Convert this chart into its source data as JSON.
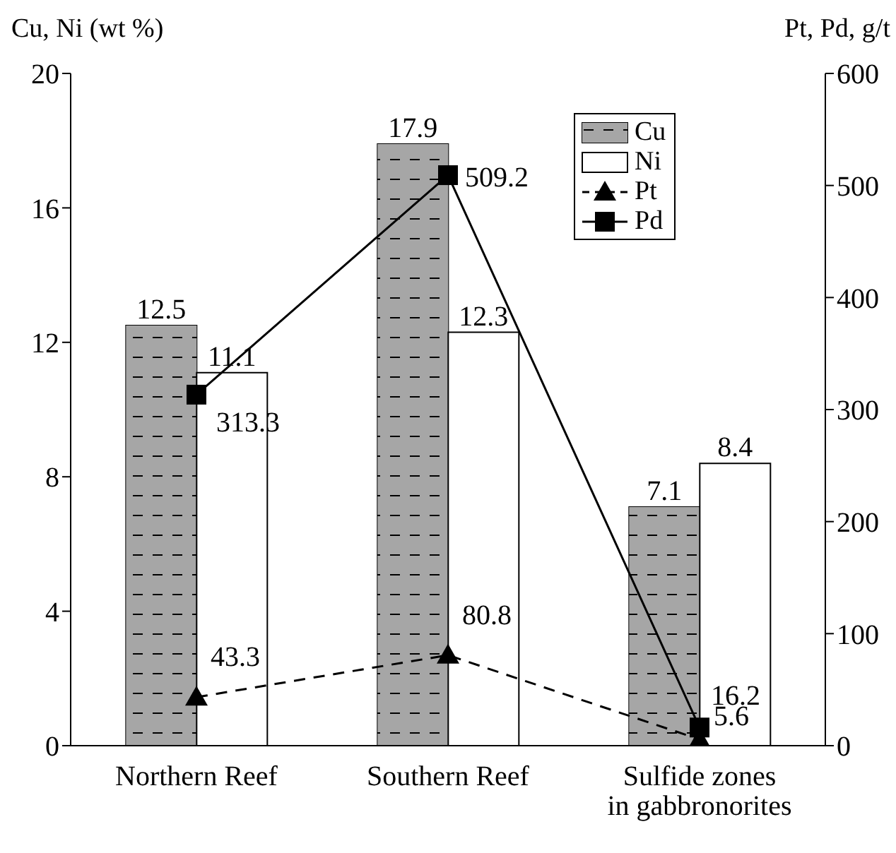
{
  "chart_data": {
    "type": "bar",
    "ylabel": "Cu, Ni (wt %)",
    "y2label": "Pt, Pd, g/t",
    "categories": [
      "Northern Reef",
      "Southern Reef",
      "Sulfide zones\nin gabbronorites"
    ],
    "series": [
      {
        "name": "Cu",
        "color": "#a6a6a6",
        "values": [
          12.5,
          17.9,
          7.1
        ]
      },
      {
        "name": "Ni",
        "color": "#ffffff",
        "values": [
          11.1,
          12.3,
          8.4
        ]
      },
      {
        "name": "Pt",
        "type": "line",
        "axis": "y2",
        "color": "#000000",
        "marker": "triangle",
        "line_style": "dashed",
        "values": [
          43.3,
          80.8,
          5.6
        ]
      },
      {
        "name": "Pd",
        "type": "line",
        "axis": "y2",
        "color": "#000000",
        "marker": "square",
        "line_style": "solid",
        "values": [
          313.3,
          509.2,
          16.2
        ]
      }
    ],
    "ylim": [
      0,
      20
    ],
    "yticks": [
      0,
      4,
      8,
      12,
      16,
      20
    ],
    "y2lim": [
      0,
      600
    ],
    "y2ticks": [
      0,
      100,
      200,
      300,
      400,
      500,
      600
    ],
    "data_labels": true,
    "legend": "top right",
    "grid": false
  }
}
